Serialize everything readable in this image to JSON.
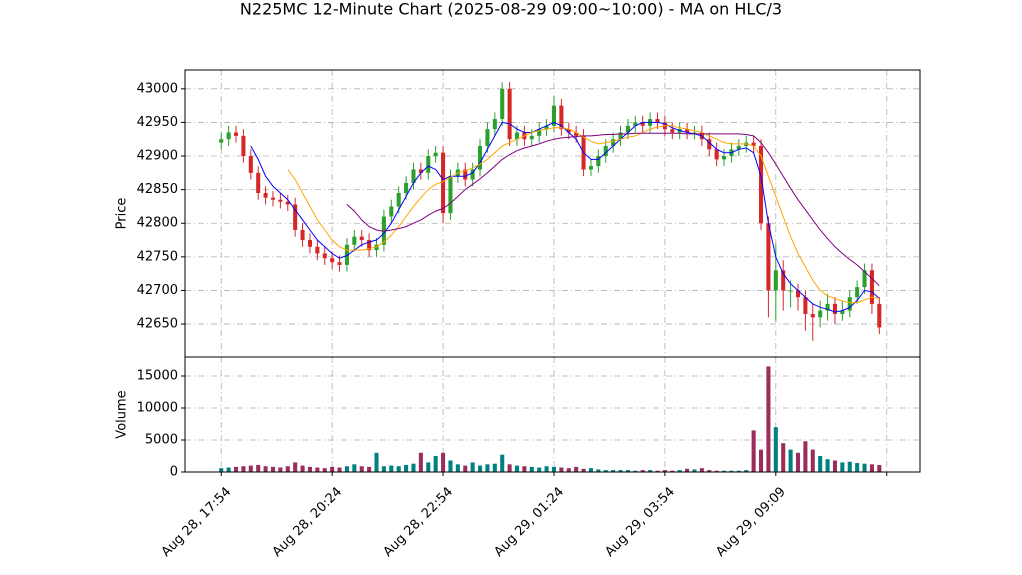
{
  "chart_data": [
    {
      "type": "candlestick",
      "title": "N225MC 12-Minute Chart (2025-08-29 09:00~10:00) - MA on HLC/3",
      "ylabel": "Price",
      "up_color": "#2ca02c",
      "down_color": "#d62728",
      "grid": true,
      "xlim": [
        -4.9,
        94.5
      ],
      "ylim": [
        42601,
        43028
      ],
      "yticks": [
        42650,
        42700,
        42750,
        42800,
        42850,
        42900,
        42950,
        43000
      ],
      "open": [
        42920,
        42925,
        42935,
        42930,
        42900,
        42875,
        42845,
        42838,
        42835,
        42832,
        42828,
        42790,
        42775,
        42765,
        42755,
        42748,
        42742,
        42738,
        42768,
        42780,
        42775,
        42760,
        42768,
        42810,
        42825,
        42845,
        42860,
        42880,
        42875,
        42900,
        42905,
        42815,
        42870,
        42880,
        42865,
        42880,
        42915,
        42940,
        42955,
        43000,
        42925,
        42935,
        42925,
        42930,
        42940,
        42945,
        42975,
        42940,
        42935,
        42930,
        42880,
        42885,
        42900,
        42915,
        42925,
        42935,
        42945,
        42950,
        42945,
        42955,
        42950,
        42940,
        42935,
        42940,
        42935,
        42935,
        42925,
        42910,
        42895,
        42900,
        42910,
        42915,
        42920,
        42915,
        42800,
        42700,
        42730,
        42700,
        42700,
        42690,
        42665,
        42660,
        42670,
        42680,
        42665,
        42670,
        42690,
        42705,
        42730,
        42680
      ],
      "high": [
        42935,
        42945,
        42945,
        42940,
        42910,
        42885,
        42855,
        42848,
        42845,
        42842,
        42838,
        42800,
        42785,
        42775,
        42765,
        42758,
        42752,
        42778,
        42790,
        42790,
        42785,
        42778,
        42820,
        42835,
        42855,
        42870,
        42890,
        42890,
        42910,
        42915,
        42915,
        42880,
        42890,
        42890,
        42890,
        42925,
        42950,
        42965,
        43010,
        43010,
        42945,
        42945,
        42940,
        42950,
        42955,
        42990,
        42985,
        42950,
        42945,
        42940,
        42895,
        42910,
        42925,
        42935,
        42945,
        42955,
        42960,
        42960,
        42965,
        42965,
        42960,
        42950,
        42950,
        42950,
        42945,
        42945,
        42935,
        42920,
        42910,
        42920,
        42925,
        42930,
        42930,
        42925,
        42810,
        42770,
        42745,
        42715,
        42710,
        42700,
        42680,
        42685,
        42695,
        42690,
        42685,
        42700,
        42715,
        42740,
        42740,
        42690
      ],
      "low": [
        42910,
        42915,
        42920,
        42890,
        42865,
        42835,
        42828,
        42825,
        42822,
        42818,
        42780,
        42765,
        42755,
        42745,
        42738,
        42732,
        42728,
        42728,
        42758,
        42765,
        42750,
        42750,
        42758,
        42800,
        42815,
        42835,
        42850,
        42865,
        42865,
        42890,
        42800,
        42805,
        42860,
        42855,
        42855,
        42870,
        42905,
        42930,
        42945,
        42915,
        42915,
        42915,
        42915,
        42920,
        42930,
        42935,
        42930,
        42925,
        42920,
        42870,
        42870,
        42875,
        42890,
        42905,
        42915,
        42925,
        42935,
        42935,
        42935,
        42940,
        42930,
        42925,
        42925,
        42925,
        42925,
        42915,
        42900,
        42885,
        42885,
        42890,
        42900,
        42905,
        42905,
        42790,
        42660,
        42655,
        42670,
        42675,
        42670,
        42640,
        42625,
        42645,
        42655,
        42650,
        42655,
        42660,
        42680,
        42695,
        42665,
        42635
      ],
      "close": [
        42925,
        42935,
        42930,
        42900,
        42875,
        42845,
        42838,
        42835,
        42832,
        42828,
        42790,
        42775,
        42765,
        42755,
        42748,
        42742,
        42738,
        42768,
        42780,
        42775,
        42760,
        42768,
        42810,
        42825,
        42845,
        42860,
        42880,
        42875,
        42900,
        42905,
        42815,
        42870,
        42880,
        42865,
        42880,
        42915,
        42940,
        42955,
        43000,
        42925,
        42935,
        42925,
        42930,
        42940,
        42945,
        42975,
        42940,
        42935,
        42930,
        42880,
        42885,
        42900,
        42915,
        42925,
        42935,
        42945,
        42950,
        42945,
        42955,
        42950,
        42940,
        42935,
        42940,
        42935,
        42935,
        42925,
        42910,
        42895,
        42900,
        42910,
        42915,
        42920,
        42915,
        42800,
        42700,
        42730,
        42700,
        42700,
        42690,
        42665,
        42660,
        42670,
        42680,
        42665,
        42670,
        42690,
        42705,
        42730,
        42680,
        42645
      ],
      "series": [
        {
          "color": "#0000ff",
          "values": [
            null,
            null,
            null,
            null,
            42915,
            42895,
            42870,
            42855,
            42845,
            42835,
            42820,
            42805,
            42790,
            42775,
            42765,
            42755,
            42748,
            42752,
            42760,
            42768,
            42772,
            42775,
            42785,
            42800,
            42820,
            42840,
            42860,
            42875,
            42885,
            42880,
            42865,
            42870,
            42870,
            42870,
            42875,
            42890,
            42910,
            42930,
            42950,
            42948,
            42940,
            42935,
            42935,
            42940,
            42945,
            42950,
            42945,
            42935,
            42925,
            42905,
            42895,
            42895,
            42905,
            42915,
            42925,
            42935,
            42945,
            42950,
            42950,
            42950,
            42948,
            42942,
            42938,
            42935,
            42933,
            42930,
            42920,
            42910,
            42905,
            42905,
            42910,
            42912,
            42905,
            42870,
            42800,
            42750,
            42725,
            42710,
            42700,
            42690,
            42680,
            42675,
            42672,
            42668,
            42670,
            42675,
            42685,
            42700,
            42698,
            42688
          ]
        },
        {
          "color": "#ffa500",
          "values": [
            null,
            null,
            null,
            null,
            null,
            null,
            null,
            null,
            null,
            42880,
            42865,
            42845,
            42825,
            42805,
            42790,
            42775,
            42765,
            42760,
            42760,
            42760,
            42762,
            42765,
            42772,
            42782,
            42795,
            42810,
            42825,
            42838,
            42850,
            42858,
            42862,
            42868,
            42875,
            42878,
            42882,
            42888,
            42895,
            42905,
            42915,
            42920,
            42925,
            42930,
            42935,
            42938,
            42940,
            42942,
            42942,
            42940,
            42935,
            42928,
            42922,
            42918,
            42920,
            42922,
            42925,
            42928,
            42930,
            42935,
            42940,
            42943,
            42945,
            42945,
            42942,
            42940,
            42938,
            42935,
            42930,
            42925,
            42920,
            42918,
            42918,
            42918,
            42915,
            42900,
            42870,
            42840,
            42810,
            42780,
            42755,
            42735,
            42715,
            42700,
            42692,
            42688,
            42684,
            42682,
            42682,
            42686,
            42690,
            42688
          ]
        },
        {
          "color": "#800080",
          "values": [
            null,
            null,
            null,
            null,
            null,
            null,
            null,
            null,
            null,
            null,
            null,
            null,
            null,
            null,
            null,
            null,
            null,
            42828,
            42818,
            42805,
            42795,
            42790,
            42788,
            42790,
            42792,
            42795,
            42800,
            42805,
            42812,
            42818,
            42822,
            42830,
            42840,
            42850,
            42858,
            42866,
            42875,
            42885,
            42895,
            42902,
            42908,
            42912,
            42915,
            42918,
            42922,
            42925,
            42927,
            42928,
            42929,
            42930,
            42930,
            42931,
            42932,
            42932,
            42933,
            42933,
            42934,
            42934,
            42934,
            42934,
            42934,
            42934,
            42934,
            42933,
            42933,
            42933,
            42933,
            42933,
            42933,
            42933,
            42933,
            42932,
            42930,
            42920,
            42905,
            42888,
            42870,
            42852,
            42835,
            42820,
            42805,
            42790,
            42777,
            42765,
            42755,
            42746,
            42738,
            42728,
            42718,
            42707
          ]
        }
      ]
    },
    {
      "type": "bar",
      "ylabel": "Volume",
      "up_color": "#008080",
      "down_color": "#9b2d5b",
      "grid": true,
      "xlim": [
        -4.9,
        94.5
      ],
      "ylim": [
        0,
        17970
      ],
      "yticks": [
        0,
        5000,
        10000,
        15000
      ],
      "xticks": [
        {
          "value": 0,
          "label": "Aug 28, 17:54"
        },
        {
          "value": 15,
          "label": "Aug 28, 20:24"
        },
        {
          "value": 30,
          "label": "Aug 28, 22:54"
        },
        {
          "value": 45,
          "label": "Aug 29, 01:24"
        },
        {
          "value": 60,
          "label": "Aug 29, 03:54"
        },
        {
          "value": 75,
          "label": "Aug 29, 09:09"
        },
        {
          "value": 90,
          "label": null
        }
      ],
      "values": [
        600,
        700,
        800,
        900,
        1000,
        1100,
        900,
        800,
        700,
        900,
        1500,
        1000,
        800,
        700,
        600,
        800,
        700,
        900,
        1200,
        900,
        800,
        3000,
        900,
        1000,
        900,
        1100,
        1300,
        3000,
        1500,
        2500,
        3000,
        1800,
        1200,
        1000,
        1500,
        1000,
        1200,
        1300,
        2700,
        1200,
        1000,
        900,
        800,
        700,
        900,
        800,
        700,
        600,
        800,
        500,
        600,
        400,
        300,
        300,
        300,
        300,
        200,
        300,
        300,
        200,
        300,
        200,
        300,
        500,
        400,
        600,
        300,
        200,
        200,
        200,
        200,
        300,
        6500,
        3500,
        16500,
        7000,
        4500,
        3500,
        3000,
        4800,
        3500,
        2500,
        2000,
        1800,
        1500,
        1600,
        1400,
        1300,
        1200,
        1100
      ]
    }
  ]
}
